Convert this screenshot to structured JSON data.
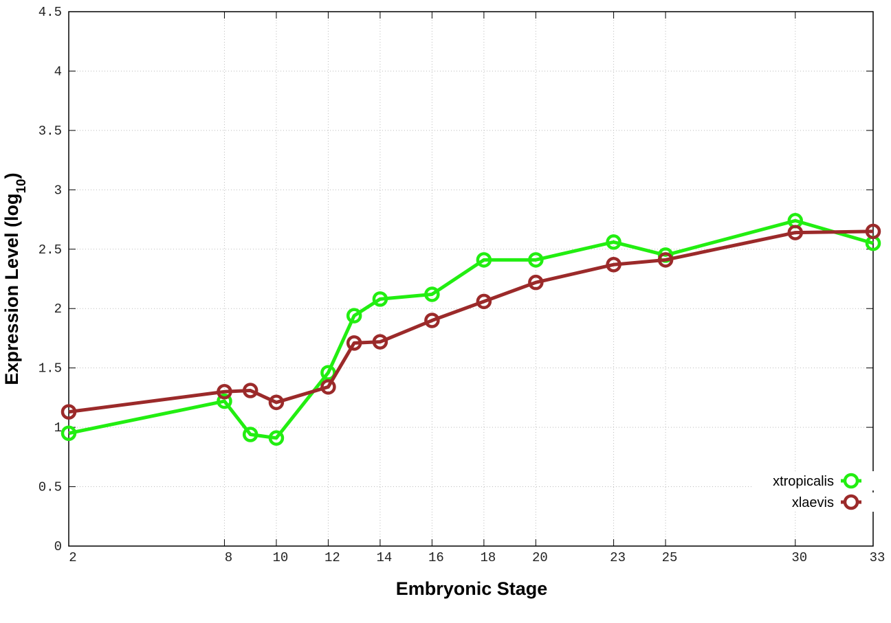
{
  "chart_data": {
    "type": "line",
    "xlabel": "Embryonic Stage",
    "ylabel": [
      "Expression Level (log",
      "10",
      ")"
    ],
    "x": [
      2,
      8,
      9,
      10,
      12,
      13,
      14,
      16,
      18,
      20,
      23,
      25,
      30,
      33
    ],
    "series": [
      {
        "name": "xtropicalis",
        "color": "#22ee11",
        "values": [
          0.95,
          1.22,
          0.94,
          0.91,
          1.46,
          1.94,
          2.08,
          2.12,
          2.41,
          2.41,
          2.56,
          2.45,
          2.74,
          2.55
        ]
      },
      {
        "name": "xlaevis",
        "color": "#9b2a2a",
        "values": [
          1.13,
          1.3,
          1.31,
          1.21,
          1.34,
          1.71,
          1.72,
          1.9,
          2.06,
          2.22,
          2.37,
          2.41,
          2.64,
          2.65
        ]
      }
    ],
    "xlim": [
      2,
      33
    ],
    "xticks": [
      2,
      8,
      10,
      12,
      14,
      16,
      18,
      20,
      23,
      25,
      30,
      33
    ],
    "ylim": [
      0,
      4.5
    ],
    "yticks": [
      0,
      0.5,
      1,
      1.5,
      2,
      2.5,
      3,
      3.5,
      4,
      4.5
    ],
    "grid": true,
    "legend": "lower right"
  }
}
